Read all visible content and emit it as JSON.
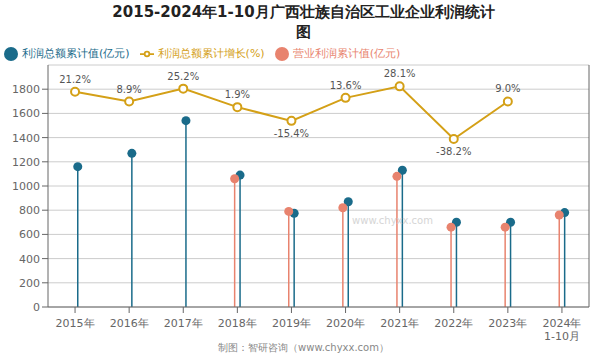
{
  "chart_data": {
    "type": "lollipop",
    "title": "2015-2024年1-10月广西壮族自治区工业企业利润统计",
    "subtitle": "图",
    "categories": [
      "2015年",
      "2016年",
      "2017年",
      "2018年",
      "2019年",
      "2020年",
      "2021年",
      "2022年",
      "2023年",
      "2024年\n1-10月"
    ],
    "series": [
      {
        "name": "利润总额累计值(亿元)",
        "color": "#1a6b8a",
        "values": [
          1160,
          1270,
          1540,
          1090,
          775,
          870,
          1130,
          700,
          700,
          780
        ]
      },
      {
        "name": "营业利润累计值(亿元)",
        "color": "#e8836e",
        "values": [
          null,
          null,
          null,
          1060,
          790,
          820,
          1080,
          660,
          660,
          760
        ]
      },
      {
        "name": "利润总额累计增长(%)",
        "type": "line",
        "axis": "y2",
        "color": "#d4a017",
        "marker": "circle",
        "data_labels": true,
        "values": [
          21.2,
          8.9,
          25.2,
          1.9,
          -15.4,
          13.6,
          28.1,
          -38.2,
          9.0,
          null
        ],
        "value_labels": [
          "21.2%",
          "8.9%",
          "25.2%",
          "1.9%",
          "-15.4%",
          "13.6%",
          "28.1%",
          "-38.2%",
          "9.0%",
          null
        ]
      }
    ],
    "ylim": [
      0,
      2000
    ],
    "yticks": [
      0,
      200,
      400,
      600,
      800,
      1000,
      1200,
      1400,
      1600,
      1800
    ],
    "y2lim": [
      -250,
      55
    ],
    "y2ticks": [],
    "grid": true,
    "legend": "top-left",
    "annotations": [
      "制图：智研咨询（www.chyxx.com）",
      "www.chyxx.com"
    ]
  }
}
